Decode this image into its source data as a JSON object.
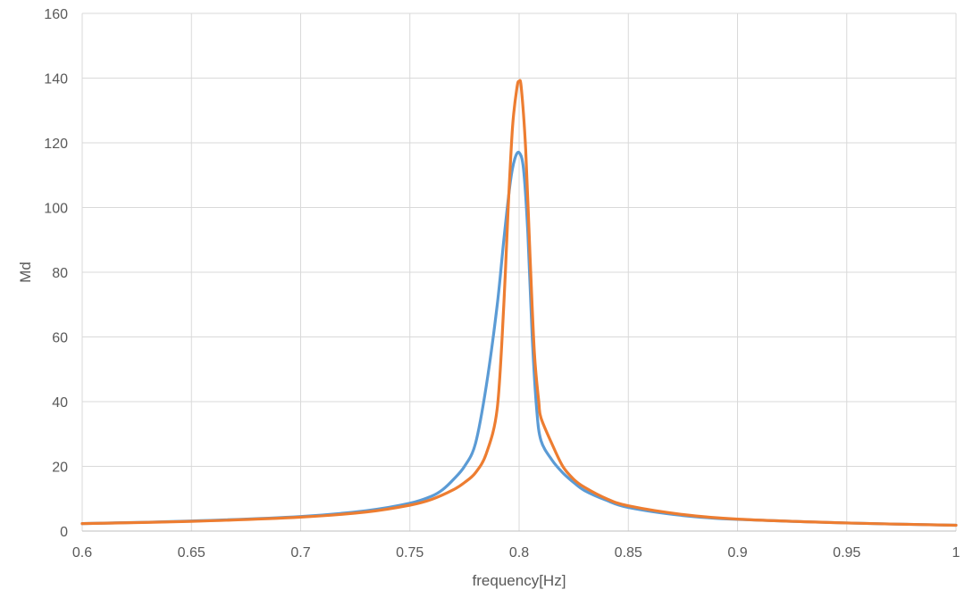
{
  "chart_data": {
    "type": "line",
    "title": "",
    "xlabel": "frequency[Hz]",
    "ylabel": "Md",
    "xlim": [
      0.6,
      1.0
    ],
    "ylim": [
      0,
      160
    ],
    "grid": true,
    "legend": "none",
    "x_ticks": [
      "0.6",
      "0.65",
      "0.7",
      "0.75",
      "0.8",
      "0.85",
      "0.9",
      "0.95",
      "1"
    ],
    "y_ticks": [
      "0",
      "20",
      "40",
      "60",
      "80",
      "100",
      "120",
      "140",
      "160"
    ],
    "series": [
      {
        "color": "#5B9BD5",
        "x": [
          0.6,
          0.65,
          0.7,
          0.73,
          0.75,
          0.76,
          0.765,
          0.77,
          0.775,
          0.78,
          0.785,
          0.79,
          0.793,
          0.796,
          0.798,
          0.8,
          0.802,
          0.804,
          0.806,
          0.808,
          0.81,
          0.815,
          0.82,
          0.825,
          0.83,
          0.84,
          0.85,
          0.875,
          0.9,
          0.95,
          1.0
        ],
        "y": [
          2.3,
          3.1,
          4.5,
          6.3,
          8.6,
          10.8,
          12.8,
          16,
          20,
          27,
          45,
          70,
          90,
          108,
          115,
          117,
          112,
          92,
          60,
          38,
          28,
          22,
          18,
          15,
          12.5,
          9.5,
          7.3,
          4.8,
          3.6,
          2.5,
          1.8
        ]
      },
      {
        "color": "#ED7D31",
        "x": [
          0.6,
          0.65,
          0.7,
          0.73,
          0.75,
          0.76,
          0.77,
          0.775,
          0.78,
          0.785,
          0.79,
          0.793,
          0.795,
          0.797,
          0.799,
          0.8,
          0.801,
          0.803,
          0.805,
          0.807,
          0.809,
          0.81,
          0.815,
          0.82,
          0.825,
          0.83,
          0.84,
          0.85,
          0.875,
          0.9,
          0.95,
          1.0
        ],
        "y": [
          2.3,
          3.0,
          4.3,
          5.9,
          8.0,
          9.8,
          12.8,
          15,
          18,
          24,
          38,
          70,
          100,
          125,
          137,
          139,
          137,
          118,
          85,
          55,
          40,
          35,
          27,
          20,
          16,
          13.5,
          10,
          7.8,
          5.1,
          3.7,
          2.5,
          1.8
        ]
      }
    ]
  }
}
